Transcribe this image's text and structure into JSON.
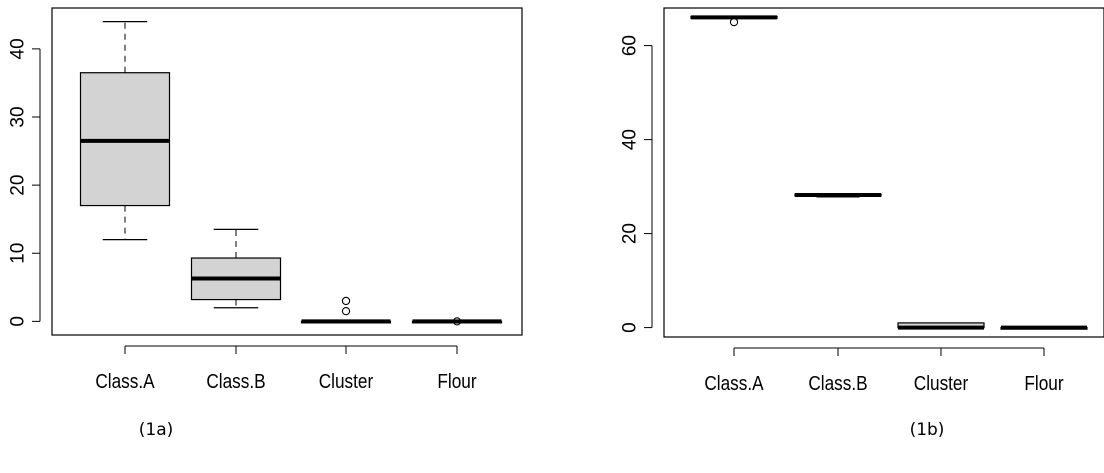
{
  "chart_data": [
    {
      "type": "box",
      "caption": "(1a)",
      "categories": [
        "Class.A",
        "Class.B",
        "Cluster",
        "Flour"
      ],
      "ylim": [
        -2,
        46
      ],
      "yticks": [
        0,
        10,
        20,
        30,
        40
      ],
      "grid": false,
      "series": [
        {
          "category": "Class.A",
          "whisker_low": 12,
          "q1": 17,
          "median": 26.5,
          "q3": 36.5,
          "whisker_high": 44,
          "outliers": []
        },
        {
          "category": "Class.B",
          "whisker_low": 2,
          "q1": 3.2,
          "median": 6.3,
          "q3": 9.3,
          "whisker_high": 13.5,
          "outliers": []
        },
        {
          "category": "Cluster",
          "whisker_low": 0,
          "q1": 0,
          "median": 0,
          "q3": 0,
          "whisker_high": 0,
          "outliers": [
            1.5,
            3
          ]
        },
        {
          "category": "Flour",
          "whisker_low": 0,
          "q1": 0,
          "median": 0,
          "q3": 0,
          "whisker_high": 0,
          "outliers": [
            0
          ]
        }
      ]
    },
    {
      "type": "box",
      "caption": "(1b)",
      "categories": [
        "Class.A",
        "Class.B",
        "Cluster",
        "Flour"
      ],
      "ylim": [
        -2,
        68
      ],
      "yticks": [
        0,
        20,
        40,
        60
      ],
      "grid": false,
      "series": [
        {
          "category": "Class.A",
          "whisker_low": 65.8,
          "q1": 65.8,
          "median": 66,
          "q3": 66.2,
          "whisker_high": 66.2,
          "outliers": [
            65
          ]
        },
        {
          "category": "Class.B",
          "whisker_low": 27.8,
          "q1": 28,
          "median": 28.2,
          "q3": 28.4,
          "whisker_high": 28.4,
          "outliers": []
        },
        {
          "category": "Cluster",
          "whisker_low": 0,
          "q1": 0,
          "median": 0,
          "q3": 1,
          "whisker_high": 1,
          "outliers": []
        },
        {
          "category": "Flour",
          "whisker_low": 0,
          "q1": 0,
          "median": 0,
          "q3": 0,
          "whisker_high": 0,
          "outliers": []
        }
      ]
    }
  ],
  "colors": {
    "box_fill": "#d3d3d3",
    "stroke": "#000000",
    "background": "#ffffff"
  }
}
